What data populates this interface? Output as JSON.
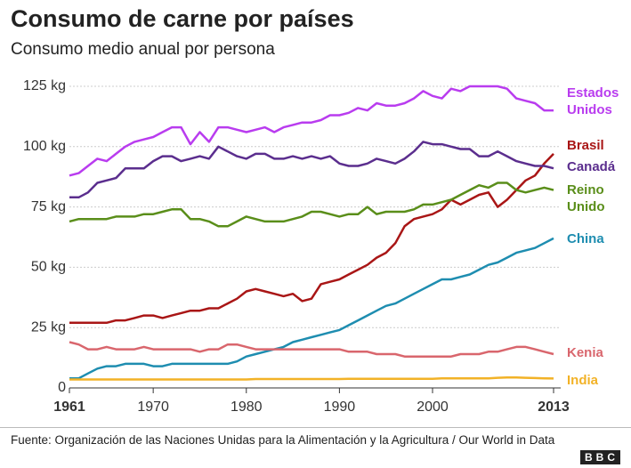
{
  "chart_data": {
    "type": "line",
    "title": "Consumo de carne por países",
    "subtitle": "Consumo medio anual por persona",
    "source": "Fuente: Organización de las Naciones Unidas para la Alimentación y la Agricultura / Our World in Data",
    "logo": "BBC",
    "x": [
      1961,
      1962,
      1963,
      1964,
      1965,
      1966,
      1967,
      1968,
      1969,
      1970,
      1971,
      1972,
      1973,
      1974,
      1975,
      1976,
      1977,
      1978,
      1979,
      1980,
      1981,
      1982,
      1983,
      1984,
      1985,
      1986,
      1987,
      1988,
      1989,
      1990,
      1991,
      1992,
      1993,
      1994,
      1995,
      1996,
      1997,
      1998,
      1999,
      2000,
      2001,
      2002,
      2003,
      2004,
      2005,
      2006,
      2007,
      2008,
      2009,
      2010,
      2011,
      2012,
      2013
    ],
    "xlim": [
      1961,
      2013
    ],
    "xticks": [
      1961,
      1970,
      1980,
      1990,
      2000,
      2013
    ],
    "ylim": [
      0,
      125
    ],
    "yticks": [
      0,
      {
        "value": 25,
        "label": "25 kg"
      },
      {
        "value": 50,
        "label": "50 kg"
      },
      {
        "value": 75,
        "label": "75 kg"
      },
      {
        "value": 100,
        "label": "100 kg"
      },
      {
        "value": 125,
        "label": "125 kg"
      }
    ],
    "grid": true,
    "series": [
      {
        "name": "Estados Unidos",
        "color": "#b93cef",
        "values": [
          88,
          89,
          92,
          95,
          94,
          97,
          100,
          102,
          103,
          104,
          106,
          108,
          108,
          101,
          106,
          102,
          108,
          108,
          107,
          106,
          107,
          108,
          106,
          108,
          109,
          110,
          110,
          111,
          113,
          113,
          114,
          116,
          115,
          118,
          117,
          117,
          118,
          120,
          123,
          121,
          120,
          124,
          123,
          125,
          125,
          125,
          125,
          124,
          120,
          119,
          118,
          115,
          115
        ]
      },
      {
        "name": "Brasil",
        "color": "#a91616",
        "values": [
          27,
          27,
          27,
          27,
          27,
          28,
          28,
          29,
          30,
          30,
          29,
          30,
          31,
          32,
          32,
          33,
          33,
          35,
          37,
          40,
          41,
          40,
          39,
          38,
          39,
          36,
          37,
          43,
          44,
          45,
          47,
          49,
          51,
          54,
          56,
          60,
          67,
          70,
          71,
          72,
          74,
          78,
          76,
          78,
          80,
          81,
          75,
          78,
          82,
          86,
          88,
          93,
          97
        ]
      },
      {
        "name": "Canadá",
        "color": "#5b2e8e",
        "values": [
          79,
          79,
          81,
          85,
          86,
          87,
          91,
          91,
          91,
          94,
          96,
          96,
          94,
          95,
          96,
          95,
          100,
          98,
          96,
          95,
          97,
          97,
          95,
          95,
          96,
          95,
          96,
          95,
          96,
          93,
          92,
          92,
          93,
          95,
          94,
          93,
          95,
          98,
          102,
          101,
          101,
          100,
          99,
          99,
          96,
          96,
          98,
          96,
          94,
          93,
          92,
          92,
          91
        ]
      },
      {
        "name": "Reino Unido",
        "color": "#5a8e1a",
        "values": [
          69,
          70,
          70,
          70,
          70,
          71,
          71,
          71,
          72,
          72,
          73,
          74,
          74,
          70,
          70,
          69,
          67,
          67,
          69,
          71,
          70,
          69,
          69,
          69,
          70,
          71,
          73,
          73,
          72,
          71,
          72,
          72,
          75,
          72,
          73,
          73,
          73,
          74,
          76,
          76,
          77,
          78,
          80,
          82,
          84,
          83,
          85,
          85,
          82,
          81,
          82,
          83,
          82
        ]
      },
      {
        "name": "China",
        "color": "#1e8db0",
        "values": [
          4,
          4,
          6,
          8,
          9,
          9,
          10,
          10,
          10,
          9,
          9,
          10,
          10,
          10,
          10,
          10,
          10,
          10,
          11,
          13,
          14,
          15,
          16,
          17,
          19,
          20,
          21,
          22,
          23,
          24,
          26,
          28,
          30,
          32,
          34,
          35,
          37,
          39,
          41,
          43,
          45,
          45,
          46,
          47,
          49,
          51,
          52,
          54,
          56,
          57,
          58,
          60,
          62
        ]
      },
      {
        "name": "Kenia",
        "color": "#d9666d",
        "values": [
          19,
          18,
          16,
          16,
          17,
          16,
          16,
          16,
          17,
          16,
          16,
          16,
          16,
          16,
          15,
          16,
          16,
          18,
          18,
          17,
          16,
          16,
          16,
          16,
          16,
          16,
          16,
          16,
          16,
          16,
          15,
          15,
          15,
          14,
          14,
          14,
          13,
          13,
          13,
          13,
          13,
          13,
          14,
          14,
          14,
          15,
          15,
          16,
          17,
          17,
          16,
          15,
          14
        ]
      },
      {
        "name": "India",
        "color": "#f2b227",
        "values": [
          3.5,
          3.5,
          3.5,
          3.5,
          3.5,
          3.5,
          3.5,
          3.5,
          3.5,
          3.5,
          3.5,
          3.5,
          3.5,
          3.5,
          3.5,
          3.5,
          3.5,
          3.5,
          3.5,
          3.5,
          3.7,
          3.7,
          3.7,
          3.7,
          3.7,
          3.7,
          3.7,
          3.7,
          3.7,
          3.7,
          3.8,
          3.8,
          3.8,
          3.8,
          3.8,
          3.8,
          3.8,
          3.8,
          3.8,
          3.8,
          4,
          4,
          4,
          4,
          4,
          4,
          4.2,
          4.3,
          4.3,
          4.2,
          4.1,
          4,
          3.9
        ]
      }
    ]
  }
}
